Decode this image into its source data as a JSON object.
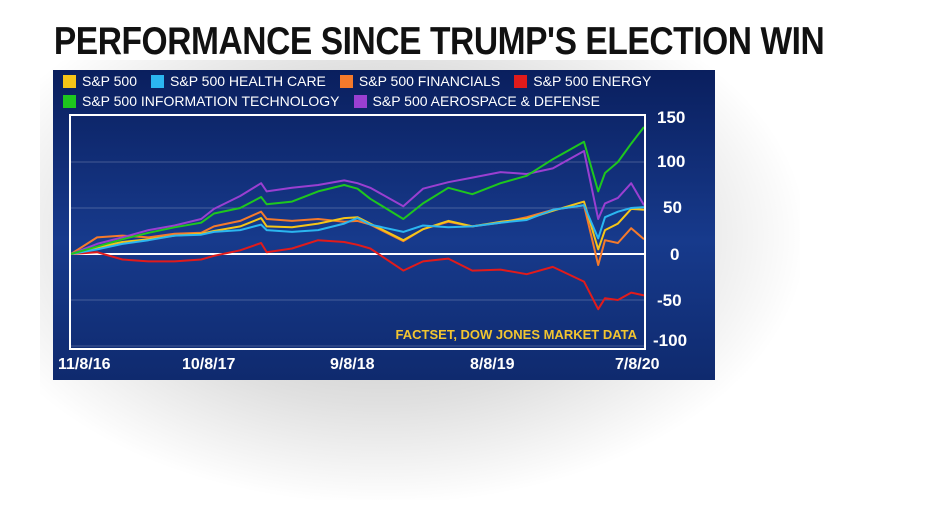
{
  "chart_data": {
    "type": "line",
    "title": "PERFORMANCE SINCE TRUMP'S ELECTION WIN",
    "source": "FACTSET, DOW JONES MARKET DATA",
    "xlabel": "",
    "ylabel": "",
    "x_ticks": [
      "11/8/16",
      "10/8/17",
      "9/8/18",
      "8/8/19",
      "7/8/20"
    ],
    "y_ticks": [
      150,
      100,
      50,
      0,
      -50,
      -100
    ],
    "ylim": [
      -100,
      150
    ],
    "grid": true,
    "legend_position": "top",
    "x": [
      "11/8/16",
      "1/8/17",
      "3/8/17",
      "5/8/17",
      "7/8/17",
      "9/8/17",
      "10/8/17",
      "12/8/17",
      "1/26/18",
      "2/8/18",
      "4/8/18",
      "6/8/18",
      "8/8/18",
      "9/8/18",
      "10/8/18",
      "12/24/18",
      "2/8/19",
      "4/8/19",
      "6/3/19",
      "8/8/19",
      "10/8/19",
      "12/8/19",
      "2/19/20",
      "3/23/20",
      "4/8/20",
      "5/8/20",
      "6/8/20",
      "7/8/20"
    ],
    "series": [
      {
        "name": "S&P 500",
        "color": "#f5c518",
        "values": [
          0,
          7,
          13,
          16,
          20,
          22,
          25,
          30,
          39,
          30,
          29,
          33,
          39,
          40,
          33,
          15,
          27,
          36,
          30,
          35,
          38,
          47,
          57,
          5,
          26,
          33,
          49,
          48
        ]
      },
      {
        "name": "S&P 500 HEALTH CARE",
        "color": "#2bb6f0",
        "values": [
          0,
          5,
          11,
          15,
          20,
          21,
          24,
          26,
          32,
          26,
          24,
          26,
          33,
          39,
          32,
          24,
          31,
          29,
          30,
          34,
          37,
          48,
          53,
          17,
          40,
          46,
          50,
          51
        ]
      },
      {
        "name": "S&P 500 FINANCIALS",
        "color": "#f57a2b",
        "values": [
          0,
          18,
          20,
          18,
          22,
          23,
          30,
          36,
          46,
          38,
          36,
          38,
          35,
          36,
          32,
          14,
          27,
          35,
          30,
          34,
          40,
          48,
          53,
          -12,
          15,
          12,
          28,
          16
        ]
      },
      {
        "name": "S&P 500 ENERGY",
        "color": "#e11b1b",
        "values": [
          0,
          2,
          -6,
          -8,
          -8,
          -6,
          -2,
          4,
          12,
          2,
          6,
          15,
          13,
          10,
          6,
          -18,
          -8,
          -5,
          -18,
          -17,
          -22,
          -14,
          -30,
          -60,
          -48,
          -50,
          -42,
          -45
        ]
      },
      {
        "name": "S&P 500 INFORMATION TECHNOLOGY",
        "color": "#1ec71e",
        "values": [
          0,
          8,
          16,
          23,
          29,
          34,
          44,
          50,
          62,
          54,
          57,
          68,
          75,
          71,
          60,
          38,
          55,
          72,
          65,
          77,
          85,
          103,
          122,
          68,
          88,
          100,
          120,
          138
        ]
      },
      {
        "name": "S&P 500 AEROSPACE & DEFENSE",
        "color": "#9a3fd1",
        "values": [
          0,
          11,
          18,
          26,
          31,
          38,
          49,
          63,
          77,
          68,
          72,
          75,
          80,
          77,
          72,
          52,
          71,
          78,
          83,
          89,
          87,
          93,
          112,
          38,
          55,
          61,
          77,
          53
        ]
      }
    ]
  }
}
